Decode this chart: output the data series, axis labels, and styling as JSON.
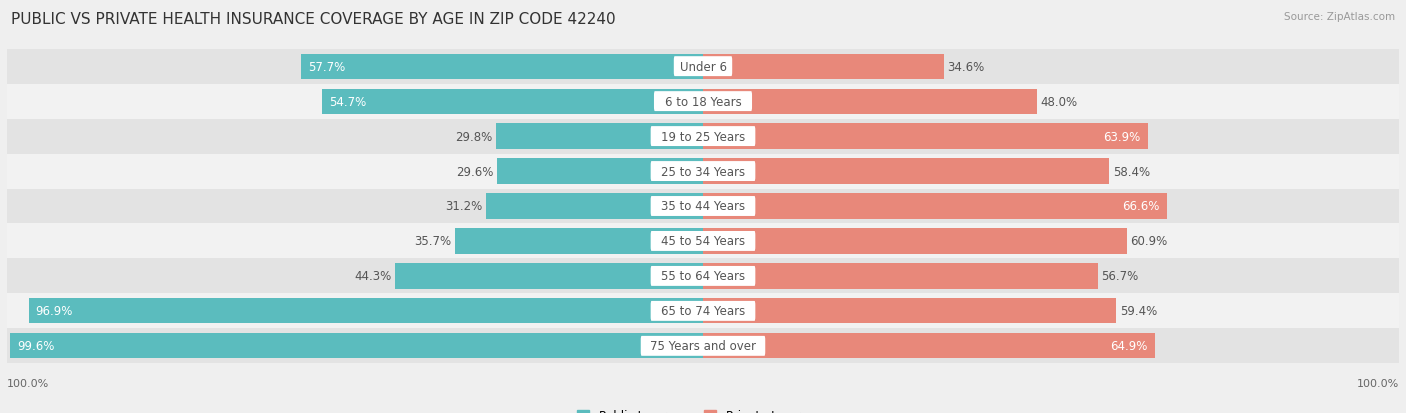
{
  "title": "PUBLIC VS PRIVATE HEALTH INSURANCE COVERAGE BY AGE IN ZIP CODE 42240",
  "source": "Source: ZipAtlas.com",
  "categories": [
    "Under 6",
    "6 to 18 Years",
    "19 to 25 Years",
    "25 to 34 Years",
    "35 to 44 Years",
    "45 to 54 Years",
    "55 to 64 Years",
    "65 to 74 Years",
    "75 Years and over"
  ],
  "public_values": [
    57.7,
    54.7,
    29.8,
    29.6,
    31.2,
    35.7,
    44.3,
    96.9,
    99.6
  ],
  "private_values": [
    34.6,
    48.0,
    63.9,
    58.4,
    66.6,
    60.9,
    56.7,
    59.4,
    64.9
  ],
  "public_color": "#5bbcbe",
  "private_color": "#e8887a",
  "background_color": "#efefef",
  "row_bg_even": "#e3e3e3",
  "row_bg_odd": "#f2f2f2",
  "label_fontsize": 8.5,
  "value_fontsize": 8.5,
  "title_fontsize": 11,
  "axis_label_100": "100.0%",
  "legend_public": "Public Insurance",
  "legend_private": "Private Insurance"
}
